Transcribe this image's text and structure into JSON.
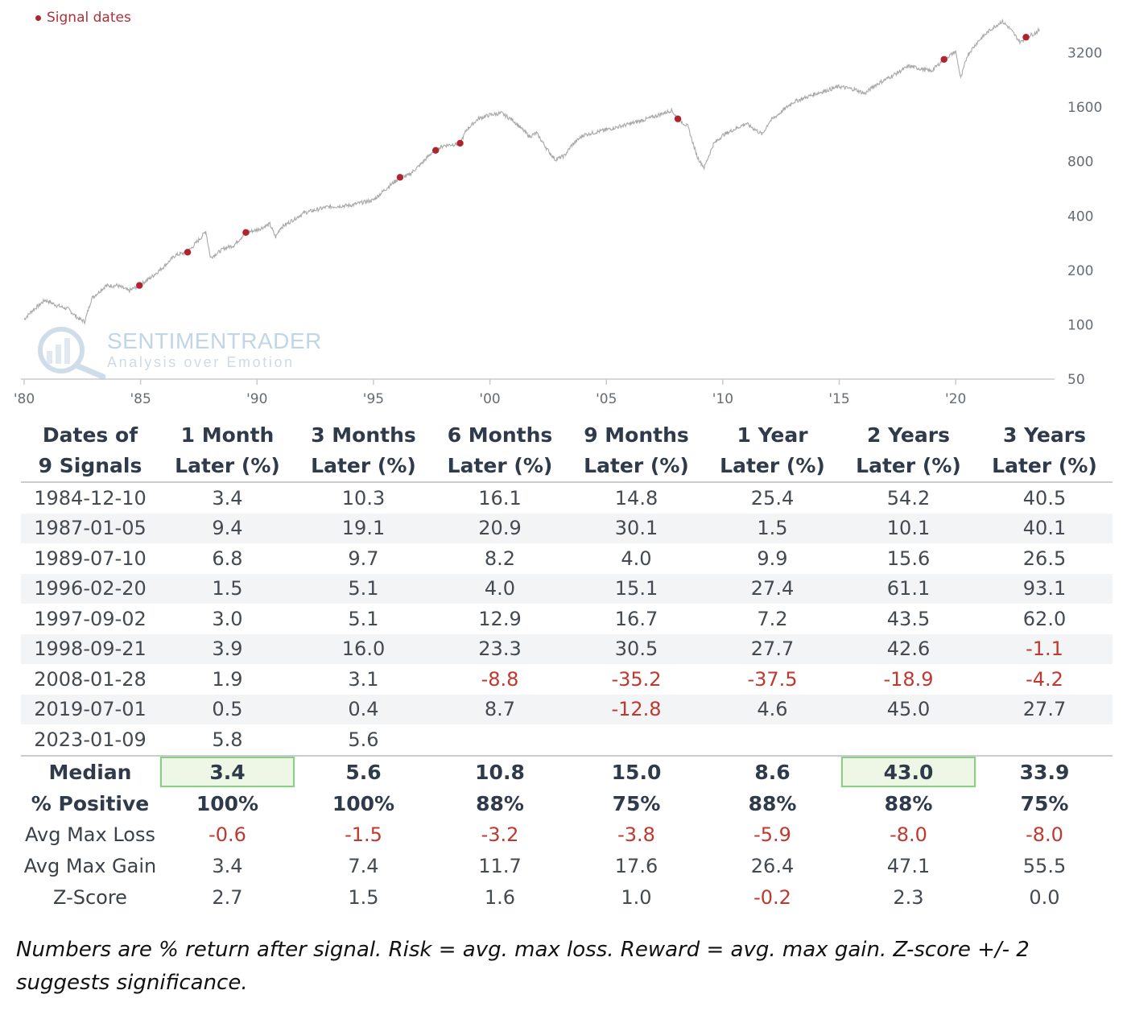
{
  "legend": {
    "label": "Signal dates",
    "marker_color": "#b0242f"
  },
  "watermark": {
    "title": "SENTIMENTRADER",
    "subtitle": "Analysis over Emotion"
  },
  "chart_data": {
    "type": "line",
    "scale": "log",
    "line_color": "#a9a9a9",
    "marker_color": "#b0242f",
    "grid": false,
    "legend_position": "top-left",
    "ylim": [
      50,
      5000
    ],
    "yticks": [
      50,
      100,
      200,
      400,
      800,
      1600,
      3200
    ],
    "ytick_labels": [
      "50",
      "100",
      "200",
      "400",
      "800",
      "1600",
      "3200"
    ],
    "xlim": [
      1980,
      2023.9
    ],
    "xticks": [
      1980,
      1985,
      1990,
      1995,
      2000,
      2005,
      2010,
      2015,
      2020
    ],
    "xtick_labels": [
      "'80",
      "'85",
      "'90",
      "'95",
      "'00",
      "'05",
      "'10",
      "'15",
      "'20"
    ],
    "series": [
      {
        "x": [
          1980.0,
          1980.3,
          1980.9,
          1981.4,
          1981.9,
          1982.3,
          1982.6,
          1982.9,
          1983.5,
          1984.0,
          1984.5,
          1984.95,
          1985.5,
          1986.0,
          1986.5,
          1987.02,
          1987.6,
          1987.8,
          1988.0,
          1988.6,
          1989.0,
          1989.52,
          1990.0,
          1990.55,
          1990.8,
          1991.0,
          1992.0,
          1993.0,
          1994.0,
          1995.0,
          1995.6,
          1996.14,
          1996.5,
          1997.0,
          1997.5,
          1997.67,
          1998.0,
          1998.55,
          1998.72,
          1999.0,
          1999.5,
          2000.0,
          2000.5,
          2001.0,
          2001.7,
          2002.0,
          2002.5,
          2002.8,
          2003.2,
          2003.5,
          2004.0,
          2005.0,
          2006.0,
          2007.0,
          2007.8,
          2008.07,
          2008.5,
          2008.9,
          2009.2,
          2009.6,
          2010.0,
          2011.0,
          2011.7,
          2012.0,
          2013.0,
          2014.0,
          2015.0,
          2015.7,
          2016.1,
          2016.5,
          2017.0,
          2018.0,
          2018.95,
          2019.5,
          2020.0,
          2020.22,
          2020.5,
          2021.0,
          2021.5,
          2021.99,
          2022.3,
          2022.78,
          2023.02,
          2023.4,
          2023.6
        ],
        "y": [
          107,
          118,
          137,
          128,
          122,
          109,
          104,
          140,
          164,
          165,
          154,
          165,
          185,
          210,
          243,
          252,
          305,
          330,
          235,
          265,
          275,
          324,
          335,
          360,
          305,
          343,
          415,
          448,
          458,
          490,
          575,
          654,
          670,
          765,
          895,
          922,
          980,
          1000,
          1010,
          1200,
          1380,
          1450,
          1480,
          1350,
          1100,
          1150,
          920,
          820,
          860,
          980,
          1120,
          1200,
          1290,
          1410,
          1540,
          1378,
          1250,
          850,
          740,
          1000,
          1120,
          1300,
          1130,
          1330,
          1700,
          1900,
          2080,
          2000,
          1900,
          2100,
          2280,
          2700,
          2530,
          2940,
          3250,
          2300,
          3100,
          3750,
          4300,
          4780,
          4400,
          3650,
          3900,
          4100,
          4300
        ]
      }
    ],
    "signal_points": {
      "x": [
        1984.95,
        1987.02,
        1989.52,
        1996.14,
        1997.67,
        1998.72,
        2008.07,
        2019.5,
        2023.02
      ],
      "y": [
        165,
        252,
        324,
        654,
        922,
        1010,
        1378,
        2940,
        3900
      ]
    }
  },
  "table": {
    "headers": [
      [
        "Dates of",
        "9 Signals"
      ],
      [
        "1 Month",
        "Later (%)"
      ],
      [
        "3 Months",
        "Later (%)"
      ],
      [
        "6 Months",
        "Later (%)"
      ],
      [
        "9 Months",
        "Later (%)"
      ],
      [
        "1 Year",
        "Later (%)"
      ],
      [
        "2 Years",
        "Later (%)"
      ],
      [
        "3 Years",
        "Later (%)"
      ]
    ],
    "rows": [
      [
        "1984-12-10",
        "3.4",
        "10.3",
        "16.1",
        "14.8",
        "25.4",
        "54.2",
        "40.5"
      ],
      [
        "1987-01-05",
        "9.4",
        "19.1",
        "20.9",
        "30.1",
        "1.5",
        "10.1",
        "40.1"
      ],
      [
        "1989-07-10",
        "6.8",
        "9.7",
        "8.2",
        "4.0",
        "9.9",
        "15.6",
        "26.5"
      ],
      [
        "1996-02-20",
        "1.5",
        "5.1",
        "4.0",
        "15.1",
        "27.4",
        "61.1",
        "93.1"
      ],
      [
        "1997-09-02",
        "3.0",
        "5.1",
        "12.9",
        "16.7",
        "7.2",
        "43.5",
        "62.0"
      ],
      [
        "1998-09-21",
        "3.9",
        "16.0",
        "23.3",
        "30.5",
        "27.7",
        "42.6",
        "-1.1"
      ],
      [
        "2008-01-28",
        "1.9",
        "3.1",
        "-8.8",
        "-35.2",
        "-37.5",
        "-18.9",
        "-4.2"
      ],
      [
        "2019-07-01",
        "0.5",
        "0.4",
        "8.7",
        "-12.8",
        "4.6",
        "45.0",
        "27.7"
      ],
      [
        "2023-01-09",
        "5.8",
        "5.6",
        "",
        "",
        "",
        "",
        ""
      ]
    ],
    "summary": [
      {
        "label": "Median",
        "bold": true,
        "values": [
          "3.4",
          "5.6",
          "10.8",
          "15.0",
          "8.6",
          "43.0",
          "33.9"
        ],
        "highlight": [
          0,
          5
        ]
      },
      {
        "label": "% Positive",
        "bold": true,
        "values": [
          "100%",
          "100%",
          "88%",
          "75%",
          "88%",
          "88%",
          "75%"
        ],
        "highlight": []
      },
      {
        "label": "Avg Max Loss",
        "bold": false,
        "values": [
          "-0.6",
          "-1.5",
          "-3.2",
          "-3.8",
          "-5.9",
          "-8.0",
          "-8.0"
        ],
        "highlight": []
      },
      {
        "label": "Avg Max Gain",
        "bold": false,
        "values": [
          "3.4",
          "7.4",
          "11.7",
          "17.6",
          "26.4",
          "47.1",
          "55.5"
        ],
        "highlight": []
      },
      {
        "label": "Z-Score",
        "bold": false,
        "values": [
          "2.7",
          "1.5",
          "1.6",
          "1.0",
          "-0.2",
          "2.3",
          "0.0"
        ],
        "highlight": []
      }
    ]
  },
  "footnote": "Numbers are % return after signal. Risk = avg. max loss. Reward = avg. max gain. Z-score +/- 2 suggests significance."
}
